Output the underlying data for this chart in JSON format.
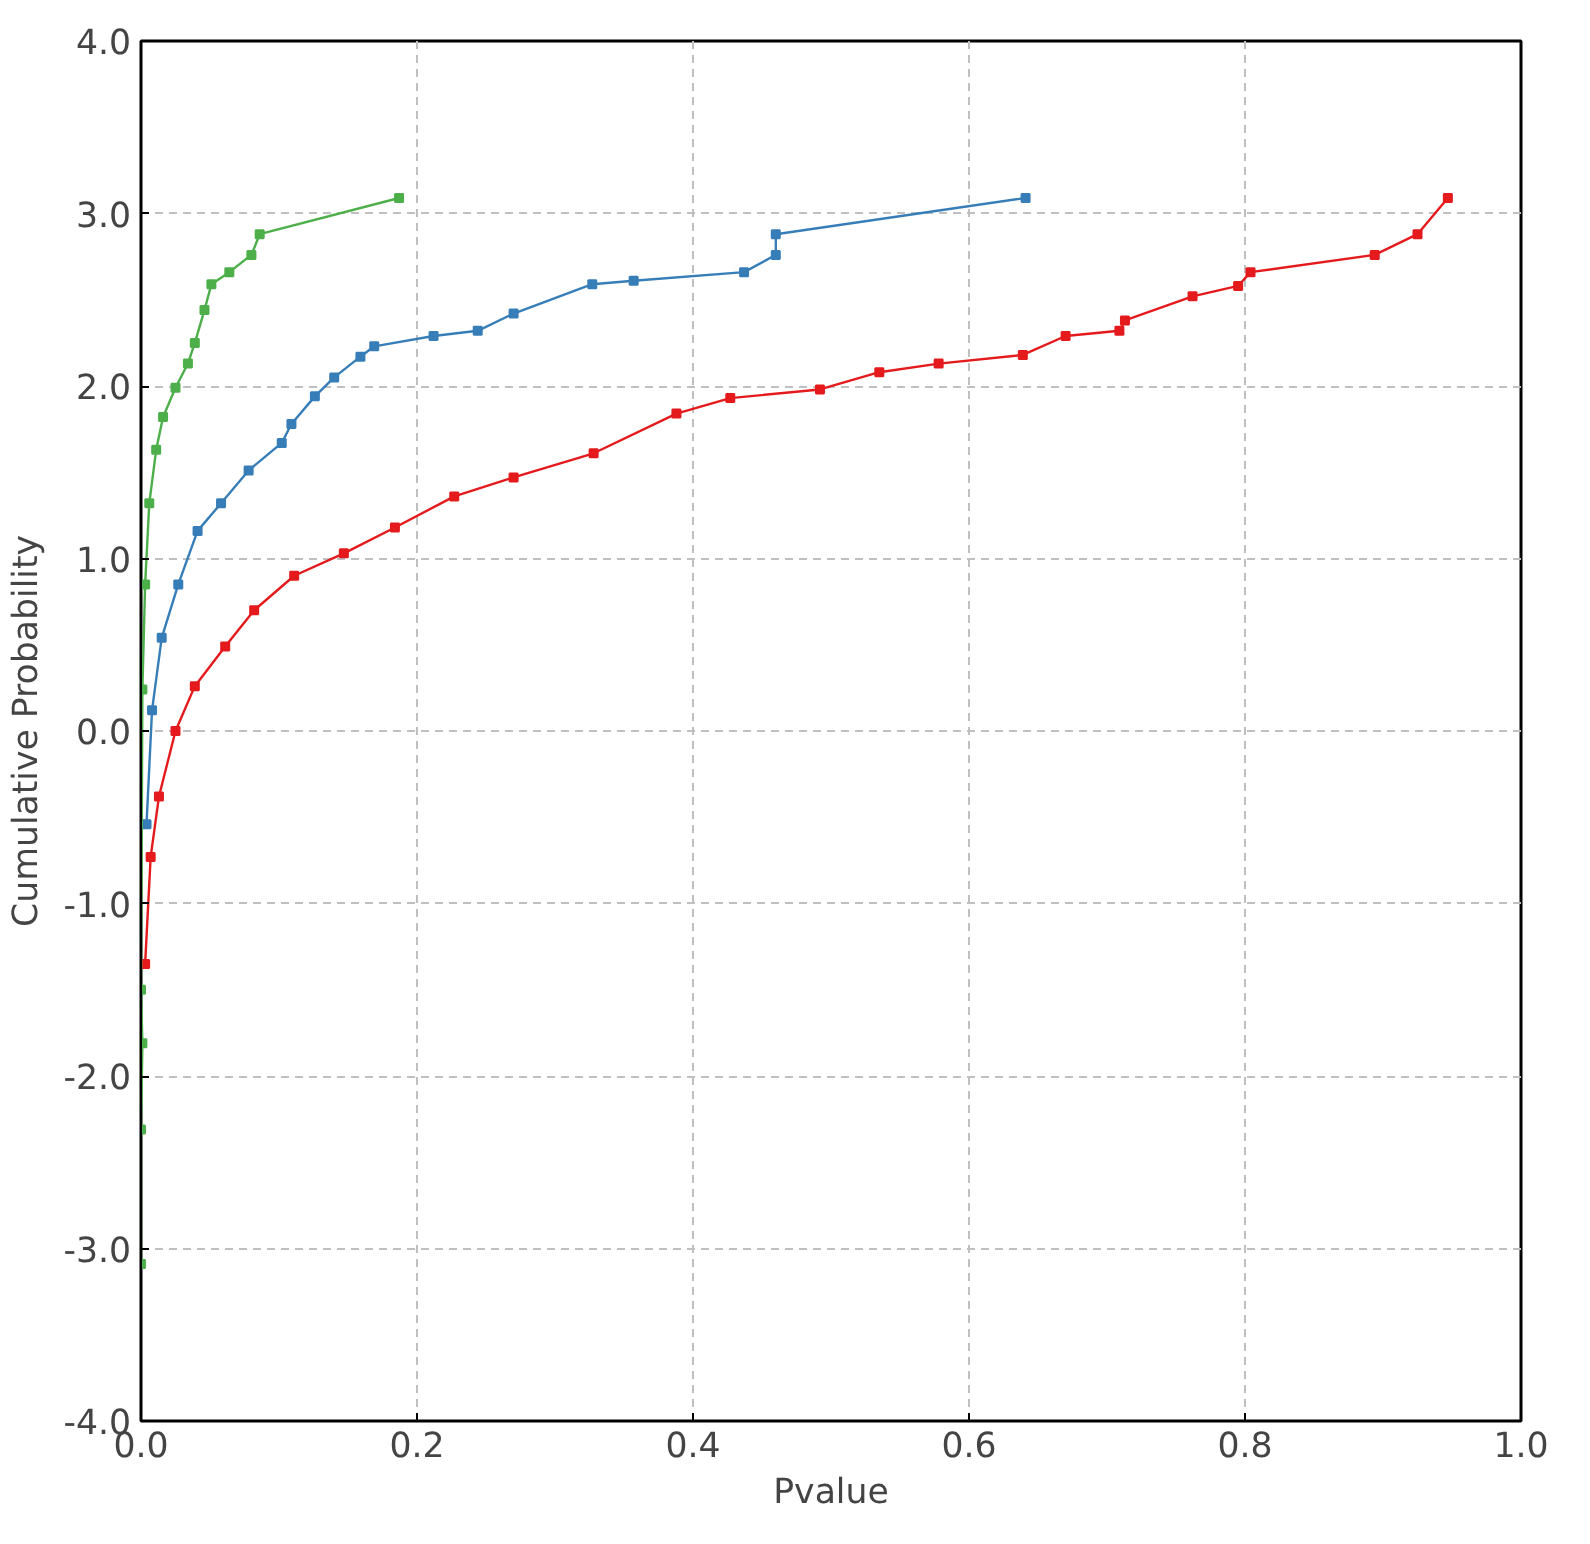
{
  "chart_data": {
    "type": "line",
    "xlabel": "Pvalue",
    "ylabel": "Cumulative Probability",
    "xlim": [
      0,
      1
    ],
    "ylim": [
      -4,
      4
    ],
    "xticks": [
      {
        "value": 0,
        "label": "0.0"
      },
      {
        "value": 0.2,
        "label": "0.2"
      },
      {
        "value": 0.4,
        "label": "0.4"
      },
      {
        "value": 0.6,
        "label": "0.6"
      },
      {
        "value": 0.8,
        "label": "0.8"
      },
      {
        "value": 1,
        "label": "1.0"
      }
    ],
    "yticks": [
      {
        "value": -4,
        "label": "-4.0"
      },
      {
        "value": -3,
        "label": "-3.0"
      },
      {
        "value": -2,
        "label": "-2.0"
      },
      {
        "value": -1,
        "label": "-1.0"
      },
      {
        "value": 0,
        "label": "0.0"
      },
      {
        "value": 1,
        "label": "1.0"
      },
      {
        "value": 2,
        "label": "2.0"
      },
      {
        "value": 3,
        "label": "3.0"
      },
      {
        "value": 4,
        "label": "4.0"
      }
    ],
    "grid": true,
    "marker": "square",
    "line_style": "solid",
    "series": [
      {
        "color": "#e41a1c",
        "x": [
          0.003,
          0.007,
          0.013,
          0.025,
          0.039,
          0.061,
          0.082,
          0.111,
          0.147,
          0.184,
          0.227,
          0.27,
          0.328,
          0.388,
          0.427,
          0.492,
          0.535,
          0.578,
          0.639,
          0.67,
          0.709,
          0.713,
          0.762,
          0.795,
          0.804,
          0.894,
          0.925,
          0.947
        ],
        "values": [
          -1.35,
          -0.73,
          -0.38,
          0.0,
          0.26,
          0.49,
          0.7,
          0.9,
          1.03,
          1.18,
          1.36,
          1.47,
          1.61,
          1.84,
          1.93,
          1.98,
          2.08,
          2.13,
          2.18,
          2.29,
          2.32,
          2.38,
          2.52,
          2.58,
          2.66,
          2.76,
          2.88,
          3.09
        ]
      },
      {
        "color": "#377eb8",
        "x": [
          0.004,
          0.008,
          0.015,
          0.027,
          0.041,
          0.058,
          0.078,
          0.102,
          0.109,
          0.126,
          0.14,
          0.159,
          0.169,
          0.212,
          0.244,
          0.27,
          0.327,
          0.357,
          0.437,
          0.46,
          0.46,
          0.641
        ],
        "values": [
          -0.54,
          0.12,
          0.54,
          0.85,
          1.16,
          1.32,
          1.51,
          1.67,
          1.78,
          1.94,
          2.05,
          2.17,
          2.23,
          2.29,
          2.32,
          2.42,
          2.59,
          2.61,
          2.66,
          2.76,
          2.88,
          3.09
        ]
      },
      {
        "color": "#4daf4a",
        "x": [
          0.0,
          0.0,
          0.001,
          0.0,
          0.001,
          0.003,
          0.006,
          0.011,
          0.016,
          0.025,
          0.034,
          0.039,
          0.046,
          0.051,
          0.064,
          0.08,
          0.086,
          0.187
        ],
        "values": [
          -3.09,
          -2.31,
          -1.81,
          -1.5,
          0.24,
          0.85,
          1.32,
          1.63,
          1.82,
          1.99,
          2.13,
          2.25,
          2.44,
          2.59,
          2.66,
          2.76,
          2.88,
          3.09
        ]
      }
    ]
  }
}
